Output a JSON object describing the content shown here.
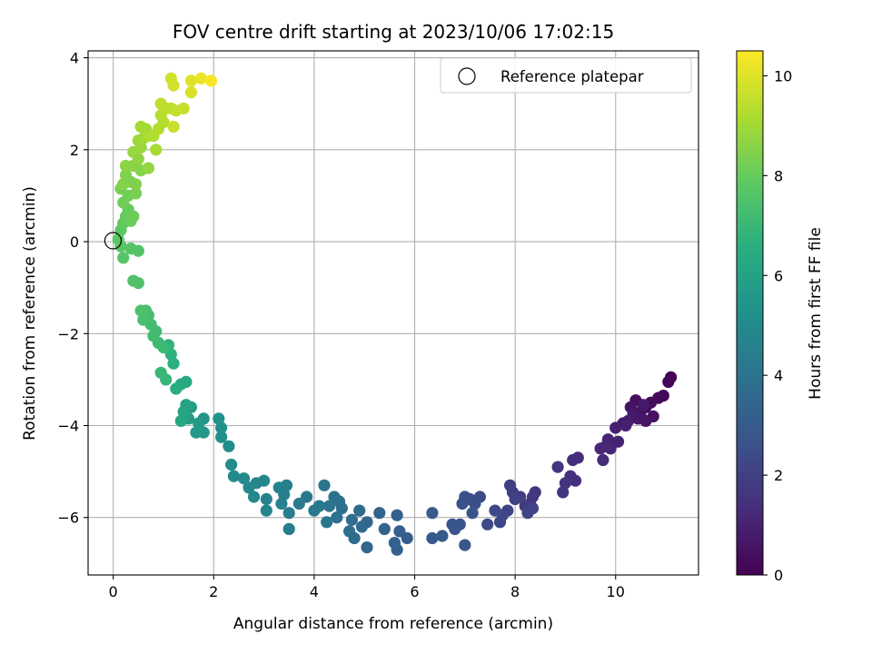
{
  "chart_data": {
    "type": "scatter",
    "title": "FOV centre drift starting at 2023/10/06 17:02:15",
    "xlabel": "Angular distance from reference (arcmin)",
    "ylabel": "Rotation from reference (arcmin)",
    "xlim": [
      -0.5,
      11.65
    ],
    "ylim": [
      -7.25,
      4.15
    ],
    "xticks": [
      0,
      2,
      4,
      6,
      8,
      10
    ],
    "yticks": [
      4,
      2,
      0,
      -2,
      -4,
      -6
    ],
    "x_tick_labels": [
      "0",
      "2",
      "4",
      "6",
      "8",
      "10"
    ],
    "y_tick_labels": [
      "4",
      "2",
      "0",
      "−2",
      "−4",
      "−6"
    ],
    "grid": true,
    "legend": {
      "placement": "top-right",
      "entries": [
        "Reference platepar"
      ]
    },
    "reference": {
      "x": 0,
      "y": 0,
      "marker": "hollow-circle"
    },
    "colorbar": {
      "label": "Hours from first FF file",
      "range": [
        0,
        10.5
      ],
      "ticks": [
        0,
        2,
        4,
        6,
        8,
        10
      ],
      "tick_labels": [
        "0",
        "2",
        "4",
        "6",
        "8",
        "10"
      ],
      "colormap": "viridis"
    },
    "points": [
      [
        11.1,
        -2.95,
        0.0
      ],
      [
        11.05,
        -3.05,
        0.1
      ],
      [
        10.95,
        -3.35,
        0.2
      ],
      [
        10.85,
        -3.4,
        0.25
      ],
      [
        10.7,
        -3.5,
        0.3
      ],
      [
        10.6,
        -3.6,
        0.35
      ],
      [
        10.4,
        -3.45,
        0.4
      ],
      [
        10.5,
        -3.7,
        0.45
      ],
      [
        10.75,
        -3.8,
        0.5
      ],
      [
        10.3,
        -3.6,
        0.55
      ],
      [
        10.6,
        -3.9,
        0.6
      ],
      [
        10.45,
        -3.85,
        0.65
      ],
      [
        10.35,
        -3.75,
        0.7
      ],
      [
        10.55,
        -3.55,
        0.75
      ],
      [
        10.25,
        -3.9,
        0.8
      ],
      [
        10.15,
        -3.95,
        0.85
      ],
      [
        10.0,
        -4.05,
        0.9
      ],
      [
        10.2,
        -4.0,
        0.95
      ],
      [
        10.05,
        -4.35,
        1.0
      ],
      [
        9.85,
        -4.3,
        1.05
      ],
      [
        9.9,
        -4.5,
        1.1
      ],
      [
        9.8,
        -4.45,
        1.15
      ],
      [
        9.7,
        -4.5,
        1.2
      ],
      [
        9.75,
        -4.75,
        1.25
      ],
      [
        9.25,
        -4.7,
        1.3
      ],
      [
        9.15,
        -4.75,
        1.35
      ],
      [
        9.2,
        -5.2,
        1.4
      ],
      [
        9.1,
        -5.1,
        1.45
      ],
      [
        9.0,
        -5.25,
        1.5
      ],
      [
        8.85,
        -4.9,
        1.55
      ],
      [
        8.95,
        -5.45,
        1.6
      ],
      [
        8.4,
        -5.45,
        1.65
      ],
      [
        8.35,
        -5.55,
        1.7
      ],
      [
        8.3,
        -5.7,
        1.75
      ],
      [
        8.2,
        -5.75,
        1.8
      ],
      [
        8.1,
        -5.55,
        1.85
      ],
      [
        7.9,
        -5.3,
        1.9
      ],
      [
        7.95,
        -5.45,
        1.95
      ],
      [
        8.0,
        -5.6,
        2.0
      ],
      [
        7.85,
        -5.85,
        2.05
      ],
      [
        8.35,
        -5.8,
        2.1
      ],
      [
        8.25,
        -5.9,
        2.15
      ],
      [
        7.75,
        -5.95,
        2.2
      ],
      [
        7.7,
        -6.1,
        2.25
      ],
      [
        7.6,
        -5.85,
        2.3
      ],
      [
        7.45,
        -6.15,
        2.35
      ],
      [
        7.3,
        -5.55,
        2.4
      ],
      [
        7.2,
        -5.7,
        2.45
      ],
      [
        7.1,
        -5.6,
        2.5
      ],
      [
        7.0,
        -5.55,
        2.55
      ],
      [
        6.95,
        -5.7,
        2.6
      ],
      [
        7.15,
        -5.9,
        2.65
      ],
      [
        6.9,
        -6.15,
        2.7
      ],
      [
        6.8,
        -6.25,
        2.75
      ],
      [
        6.75,
        -6.15,
        2.8
      ],
      [
        7.0,
        -6.6,
        2.85
      ],
      [
        6.55,
        -6.4,
        2.9
      ],
      [
        6.35,
        -6.45,
        2.95
      ],
      [
        6.35,
        -5.9,
        3.0
      ],
      [
        5.85,
        -6.45,
        3.1
      ],
      [
        5.7,
        -6.3,
        3.15
      ],
      [
        5.65,
        -5.95,
        3.2
      ],
      [
        5.65,
        -6.7,
        3.25
      ],
      [
        5.6,
        -6.55,
        3.3
      ],
      [
        5.4,
        -6.25,
        3.35
      ],
      [
        5.3,
        -5.9,
        3.4
      ],
      [
        5.05,
        -6.1,
        3.45
      ],
      [
        5.05,
        -6.65,
        3.5
      ],
      [
        4.95,
        -6.2,
        3.55
      ],
      [
        4.9,
        -5.85,
        3.6
      ],
      [
        4.8,
        -6.45,
        3.65
      ],
      [
        4.75,
        -6.05,
        3.7
      ],
      [
        4.7,
        -6.3,
        3.75
      ],
      [
        4.55,
        -5.8,
        3.8
      ],
      [
        4.5,
        -5.65,
        3.85
      ],
      [
        4.45,
        -6.0,
        3.9
      ],
      [
        4.4,
        -5.55,
        3.95
      ],
      [
        4.3,
        -5.75,
        4.0
      ],
      [
        4.2,
        -5.3,
        4.05
      ],
      [
        4.25,
        -6.1,
        4.1
      ],
      [
        4.1,
        -5.75,
        4.15
      ],
      [
        4.0,
        -5.85,
        4.2
      ],
      [
        3.85,
        -5.55,
        4.25
      ],
      [
        3.7,
        -5.7,
        4.3
      ],
      [
        3.5,
        -5.9,
        4.35
      ],
      [
        3.5,
        -6.25,
        4.4
      ],
      [
        3.45,
        -5.3,
        4.45
      ],
      [
        3.4,
        -5.5,
        4.5
      ],
      [
        3.35,
        -5.7,
        4.55
      ],
      [
        3.3,
        -5.35,
        4.6
      ],
      [
        3.05,
        -5.6,
        4.65
      ],
      [
        3.05,
        -5.85,
        4.7
      ],
      [
        3.0,
        -5.2,
        4.75
      ],
      [
        2.85,
        -5.25,
        4.8
      ],
      [
        2.8,
        -5.55,
        4.85
      ],
      [
        2.7,
        -5.35,
        4.9
      ],
      [
        2.6,
        -5.15,
        4.95
      ],
      [
        2.4,
        -5.1,
        5.0
      ],
      [
        2.35,
        -4.85,
        5.05
      ],
      [
        2.3,
        -4.45,
        5.1
      ],
      [
        2.15,
        -4.25,
        5.15
      ],
      [
        2.15,
        -4.05,
        5.2
      ],
      [
        2.1,
        -3.85,
        5.3
      ],
      [
        1.8,
        -3.85,
        5.4
      ],
      [
        1.8,
        -4.15,
        5.5
      ],
      [
        1.7,
        -3.95,
        5.6
      ],
      [
        1.65,
        -4.15,
        5.7
      ],
      [
        1.55,
        -3.6,
        5.8
      ],
      [
        1.5,
        -3.85,
        5.9
      ],
      [
        1.45,
        -3.55,
        6.0
      ],
      [
        1.4,
        -3.7,
        6.1
      ],
      [
        1.35,
        -3.9,
        6.2
      ],
      [
        1.45,
        -3.05,
        6.3
      ],
      [
        1.35,
        -3.1,
        6.4
      ],
      [
        1.25,
        -3.2,
        6.5
      ],
      [
        1.2,
        -2.65,
        6.6
      ],
      [
        1.15,
        -2.45,
        6.7
      ],
      [
        1.1,
        -2.25,
        6.8
      ],
      [
        1.05,
        -3.0,
        6.9
      ],
      [
        0.95,
        -2.85,
        7.0
      ],
      [
        1.0,
        -2.3,
        7.05
      ],
      [
        0.9,
        -2.2,
        7.1
      ],
      [
        0.85,
        -1.95,
        7.15
      ],
      [
        0.8,
        -2.05,
        7.2
      ],
      [
        0.75,
        -1.8,
        7.25
      ],
      [
        0.7,
        -1.6,
        7.3
      ],
      [
        0.65,
        -1.5,
        7.35
      ],
      [
        0.6,
        -1.7,
        7.4
      ],
      [
        0.55,
        -1.5,
        7.45
      ],
      [
        0.5,
        -0.9,
        7.5
      ],
      [
        0.4,
        -0.85,
        7.55
      ],
      [
        0.5,
        -0.2,
        7.6
      ],
      [
        0.35,
        -0.15,
        7.65
      ],
      [
        0.2,
        -0.35,
        7.7
      ],
      [
        0.15,
        -0.1,
        7.75
      ],
      [
        0.1,
        0.05,
        7.8
      ],
      [
        0.15,
        0.25,
        7.85
      ],
      [
        0.2,
        0.4,
        7.9
      ],
      [
        0.25,
        0.55,
        7.95
      ],
      [
        0.3,
        0.7,
        8.0
      ],
      [
        0.35,
        0.45,
        8.05
      ],
      [
        0.4,
        0.55,
        8.1
      ],
      [
        0.2,
        0.85,
        8.15
      ],
      [
        0.3,
        1.0,
        8.2
      ],
      [
        0.15,
        1.15,
        8.25
      ],
      [
        0.45,
        1.05,
        8.3
      ],
      [
        0.35,
        1.3,
        8.35
      ],
      [
        0.25,
        1.45,
        8.4
      ],
      [
        0.45,
        1.25,
        8.45
      ],
      [
        0.2,
        1.25,
        8.5
      ],
      [
        0.55,
        1.55,
        8.55
      ],
      [
        0.4,
        1.65,
        8.6
      ],
      [
        0.25,
        1.65,
        8.65
      ],
      [
        0.5,
        1.8,
        8.7
      ],
      [
        0.7,
        1.6,
        8.75
      ],
      [
        0.4,
        1.95,
        8.8
      ],
      [
        0.55,
        2.05,
        8.85
      ],
      [
        0.5,
        2.2,
        8.9
      ],
      [
        0.6,
        2.25,
        8.95
      ],
      [
        0.65,
        2.45,
        9.0
      ],
      [
        0.55,
        2.5,
        9.05
      ],
      [
        0.85,
        2.0,
        9.1
      ],
      [
        0.7,
        2.3,
        9.15
      ],
      [
        0.8,
        2.3,
        9.2
      ],
      [
        0.9,
        2.45,
        9.25
      ],
      [
        1.0,
        2.6,
        9.3
      ],
      [
        0.95,
        2.75,
        9.35
      ],
      [
        1.05,
        2.9,
        9.4
      ],
      [
        0.95,
        3.0,
        9.45
      ],
      [
        1.15,
        2.9,
        9.5
      ],
      [
        1.25,
        2.85,
        9.55
      ],
      [
        1.4,
        2.9,
        9.6
      ],
      [
        1.2,
        2.5,
        9.65
      ],
      [
        1.15,
        3.55,
        9.75
      ],
      [
        1.2,
        3.4,
        9.8
      ],
      [
        1.55,
        3.25,
        9.9
      ],
      [
        1.55,
        3.5,
        10.0
      ],
      [
        1.75,
        3.55,
        10.2
      ],
      [
        1.95,
        3.5,
        10.4
      ]
    ]
  }
}
